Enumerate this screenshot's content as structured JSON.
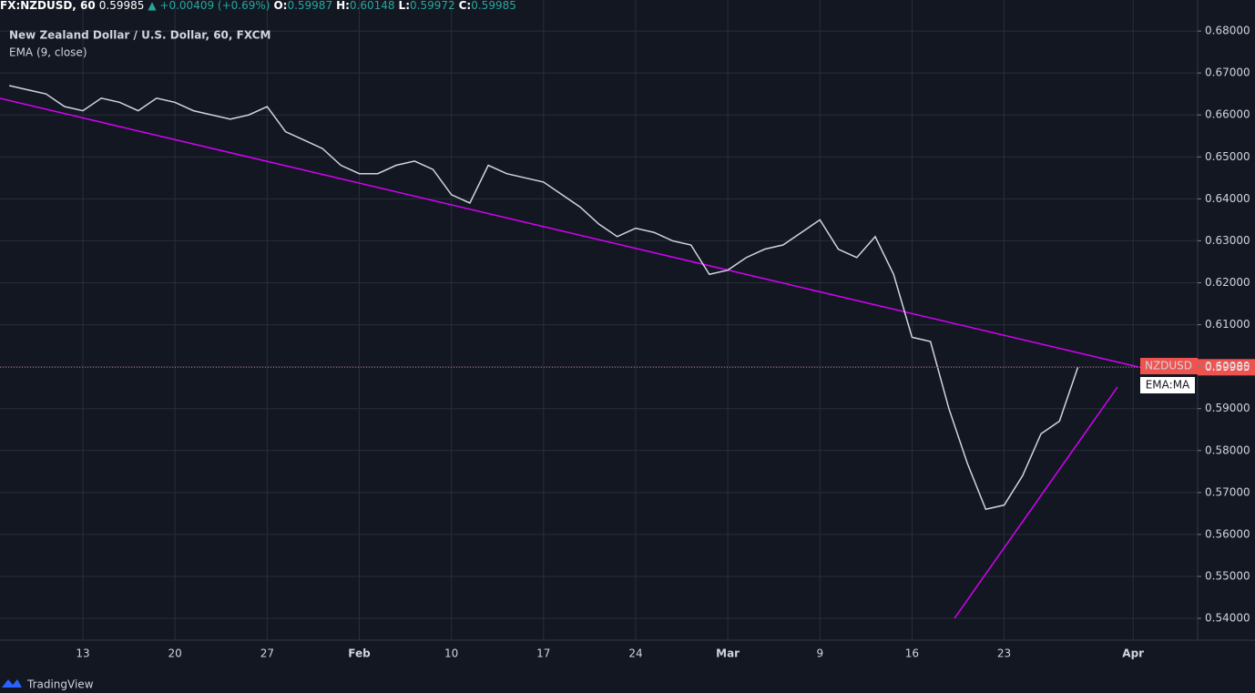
{
  "header": {
    "symbol": "FX:NZDUSD, 60",
    "change": "▲ +0.00409 (+0.69%)",
    "open_label": "O:",
    "open": 0.59987,
    "high_label": "H:",
    "high": 0.60148,
    "low_label": "L:",
    "low": 0.59972,
    "close_label": "C:"
  },
  "legend": {
    "instrument": "New Zealand Dollar / U.S. Dollar, 60, FXCM",
    "indicator": "EMA (9, close)"
  },
  "price_tag": {
    "symbol": "NZDUSD",
    "indicator": "EMA:MA"
  },
  "footer": {
    "brand": "TradingView"
  },
  "chart_data": {
    "type": "line",
    "categories": [
      null,
      null,
      null,
      null,
      "13",
      null,
      null,
      null,
      null,
      "20",
      null,
      null,
      null,
      null,
      "27",
      null,
      null,
      null,
      null,
      "Feb",
      null,
      null,
      null,
      null,
      "10",
      null,
      null,
      null,
      null,
      "17",
      null,
      null,
      null,
      null,
      "24",
      null,
      null,
      null,
      null,
      "Mar",
      null,
      null,
      null,
      null,
      "9",
      null,
      null,
      null,
      null,
      "16",
      null,
      null,
      null,
      null,
      "23",
      null,
      null,
      null,
      null,
      null,
      null,
      "Apr",
      null,
      null,
      null
    ],
    "series": [
      {
        "name": "NZDUSD",
        "color": "#d1d4dc",
        "values": [
          0.667,
          0.666,
          0.665,
          0.662,
          0.661,
          0.664,
          0.663,
          0.661,
          0.664,
          0.663,
          0.661,
          0.66,
          0.659,
          0.66,
          0.662,
          0.656,
          0.654,
          0.652,
          0.648,
          0.646,
          0.646,
          0.648,
          0.649,
          0.647,
          0.641,
          0.639,
          0.648,
          0.646,
          0.645,
          0.644,
          0.641,
          0.638,
          0.634,
          0.631,
          0.633,
          0.632,
          0.63,
          0.629,
          0.622,
          0.623,
          0.626,
          0.628,
          0.629,
          0.632,
          0.635,
          0.628,
          0.626,
          0.631,
          0.622,
          0.607,
          0.606,
          0.59,
          0.577,
          0.566,
          0.567,
          0.574,
          0.584,
          0.587,
          0.59985,
          null,
          null,
          null,
          null,
          null,
          null
        ]
      }
    ],
    "last_value": 0.59985,
    "ylim": [
      0.5348,
      0.6874
    ],
    "yticks": [
      {
        "value": 0.54,
        "label": "0.54000"
      },
      {
        "value": 0.55,
        "label": "0.55000"
      },
      {
        "value": 0.56,
        "label": "0.56000"
      },
      {
        "value": 0.57,
        "label": "0.57000"
      },
      {
        "value": 0.58,
        "label": "0.58000"
      },
      {
        "value": 0.59,
        "label": "0.59000"
      },
      {
        "value": 0.6,
        "label": "0.60000"
      },
      {
        "value": 0.61,
        "label": "0.61000"
      },
      {
        "value": 0.62,
        "label": "0.62000"
      },
      {
        "value": 0.63,
        "label": "0.63000"
      },
      {
        "value": 0.64,
        "label": "0.64000"
      },
      {
        "value": 0.65,
        "label": "0.65000"
      },
      {
        "value": 0.66,
        "label": "0.66000"
      },
      {
        "value": 0.67,
        "label": "0.67000"
      },
      {
        "value": 0.68,
        "label": "0.68000"
      }
    ],
    "grid": true
  }
}
